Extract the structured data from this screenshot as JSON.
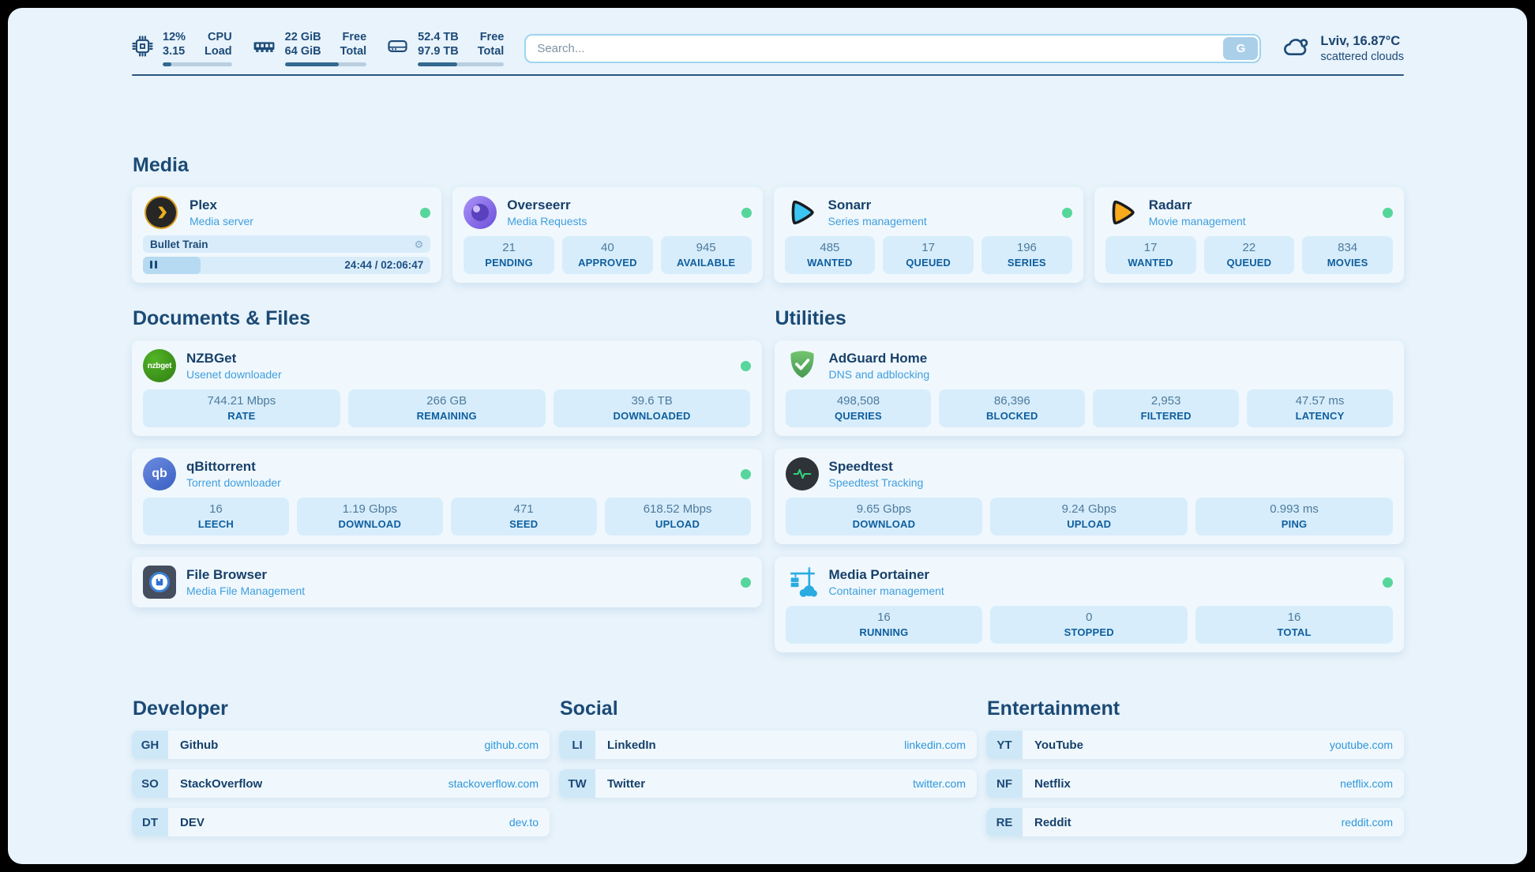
{
  "colors": {
    "accent_blue": "#2e96d9",
    "status_online": "#57d69c",
    "chip_bg": "#d7edfb",
    "navy": "#1d4a77"
  },
  "topbar": {
    "stats": [
      {
        "icon": "cpu-icon",
        "v1": "12%",
        "v2": "3.15",
        "l1": "CPU",
        "l2": "Load",
        "progress": 13
      },
      {
        "icon": "ram-icon",
        "v1": "22 GiB",
        "v2": "64 GiB",
        "l1": "Free",
        "l2": "Total",
        "progress": 66
      },
      {
        "icon": "disk-icon",
        "v1": "52.4 TB",
        "v2": "97.9 TB",
        "l1": "Free",
        "l2": "Total",
        "progress": 46
      }
    ],
    "search": {
      "placeholder": "Search...",
      "button_label": "G"
    },
    "weather": {
      "line1": "Lviv, 16.87°C",
      "line2": "scattered clouds"
    }
  },
  "media": {
    "title": "Media",
    "plex": {
      "name": "Plex",
      "subtitle": "Media server",
      "online": true,
      "now_playing": "Bullet Train",
      "time": "24:44 / 02:06:47",
      "progress_pct": 20
    },
    "cards": [
      {
        "name": "Overseerr",
        "subtitle": "Media Requests",
        "online": true,
        "stats": [
          {
            "value": "21",
            "label": "PENDING"
          },
          {
            "value": "40",
            "label": "APPROVED"
          },
          {
            "value": "945",
            "label": "AVAILABLE"
          }
        ]
      },
      {
        "name": "Sonarr",
        "subtitle": "Series management",
        "online": true,
        "stats": [
          {
            "value": "485",
            "label": "WANTED"
          },
          {
            "value": "17",
            "label": "QUEUED"
          },
          {
            "value": "196",
            "label": "SERIES"
          }
        ]
      },
      {
        "name": "Radarr",
        "subtitle": "Movie management",
        "online": true,
        "stats": [
          {
            "value": "17",
            "label": "WANTED"
          },
          {
            "value": "22",
            "label": "QUEUED"
          },
          {
            "value": "834",
            "label": "MOVIES"
          }
        ]
      }
    ]
  },
  "documents": {
    "title": "Documents & Files",
    "cards": [
      {
        "name": "NZBGet",
        "subtitle": "Usenet downloader",
        "online": true,
        "stats": [
          {
            "value": "744.21 Mbps",
            "label": "RATE"
          },
          {
            "value": "266 GB",
            "label": "REMAINING"
          },
          {
            "value": "39.6 TB",
            "label": "DOWNLOADED"
          }
        ]
      },
      {
        "name": "qBittorrent",
        "subtitle": "Torrent downloader",
        "online": true,
        "stats": [
          {
            "value": "16",
            "label": "LEECH"
          },
          {
            "value": "1.19 Gbps",
            "label": "DOWNLOAD"
          },
          {
            "value": "471",
            "label": "SEED"
          },
          {
            "value": "618.52 Mbps",
            "label": "UPLOAD"
          }
        ]
      },
      {
        "name": "File Browser",
        "subtitle": "Media File Management",
        "online": true,
        "stats": []
      }
    ]
  },
  "utilities": {
    "title": "Utilities",
    "cards": [
      {
        "name": "AdGuard Home",
        "subtitle": "DNS and adblocking",
        "online": false,
        "stats": [
          {
            "value": "498,508",
            "label": "QUERIES"
          },
          {
            "value": "86,396",
            "label": "BLOCKED"
          },
          {
            "value": "2,953",
            "label": "FILTERED"
          },
          {
            "value": "47.57 ms",
            "label": "LATENCY"
          }
        ]
      },
      {
        "name": "Speedtest",
        "subtitle": "Speedtest Tracking",
        "online": false,
        "stats": [
          {
            "value": "9.65 Gbps",
            "label": "DOWNLOAD"
          },
          {
            "value": "9.24 Gbps",
            "label": "UPLOAD"
          },
          {
            "value": "0.993 ms",
            "label": "PING"
          }
        ]
      },
      {
        "name": "Media Portainer",
        "subtitle": "Container management",
        "online": true,
        "stats": [
          {
            "value": "16",
            "label": "RUNNING"
          },
          {
            "value": "0",
            "label": "STOPPED"
          },
          {
            "value": "16",
            "label": "TOTAL"
          }
        ]
      }
    ]
  },
  "icon_labels": {
    "nzbget": "nzbget",
    "qbittorrent": "qb"
  },
  "links": {
    "developer": {
      "title": "Developer",
      "items": [
        {
          "abbr": "GH",
          "name": "Github",
          "url": "github.com"
        },
        {
          "abbr": "SO",
          "name": "StackOverflow",
          "url": "stackoverflow.com"
        },
        {
          "abbr": "DT",
          "name": "DEV",
          "url": "dev.to"
        }
      ]
    },
    "social": {
      "title": "Social",
      "items": [
        {
          "abbr": "LI",
          "name": "LinkedIn",
          "url": "linkedin.com"
        },
        {
          "abbr": "TW",
          "name": "Twitter",
          "url": "twitter.com"
        }
      ]
    },
    "entertainment": {
      "title": "Entertainment",
      "items": [
        {
          "abbr": "YT",
          "name": "YouTube",
          "url": "youtube.com"
        },
        {
          "abbr": "NF",
          "name": "Netflix",
          "url": "netflix.com"
        },
        {
          "abbr": "RE",
          "name": "Reddit",
          "url": "reddit.com"
        }
      ]
    }
  }
}
